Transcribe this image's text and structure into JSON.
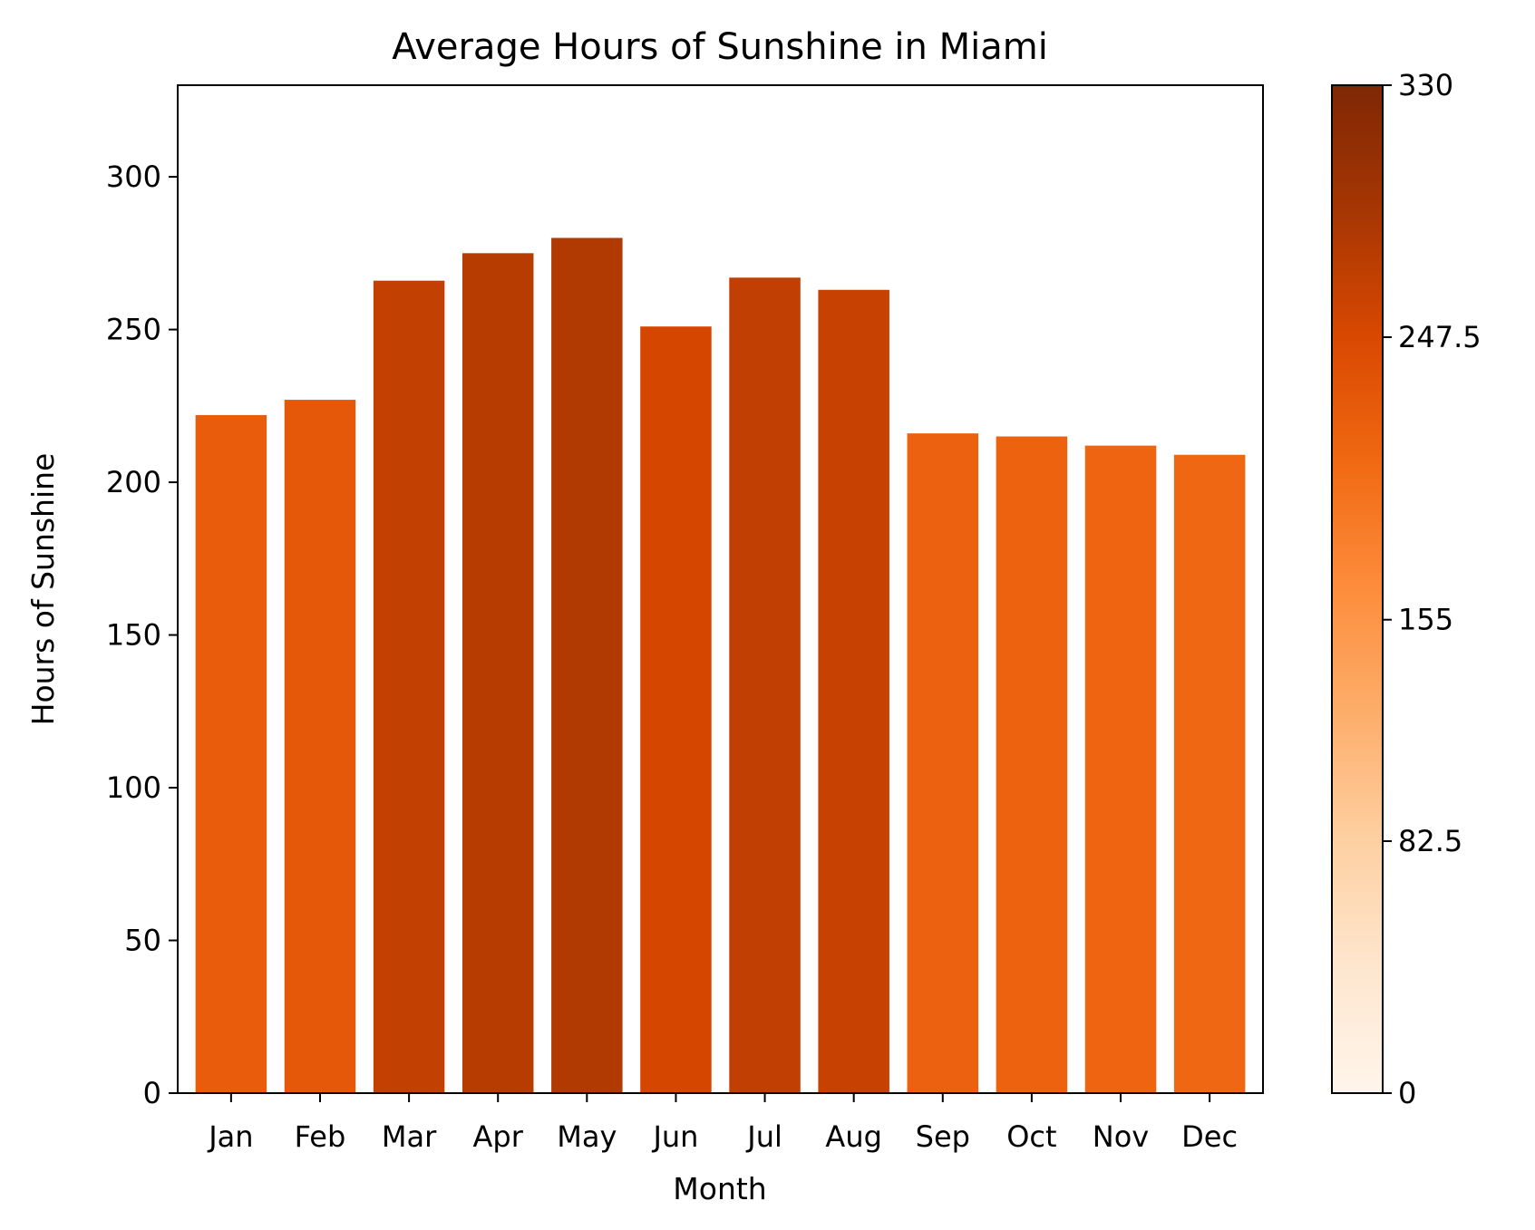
{
  "chart_data": {
    "type": "bar",
    "title": "Average Hours of Sunshine in Miami",
    "xlabel": "Month",
    "ylabel": "Hours of Sunshine",
    "categories": [
      "Jan",
      "Feb",
      "Mar",
      "Apr",
      "May",
      "Jun",
      "Jul",
      "Aug",
      "Sep",
      "Oct",
      "Nov",
      "Dec"
    ],
    "values": [
      222,
      227,
      266,
      275,
      280,
      251,
      267,
      263,
      216,
      215,
      212,
      209
    ],
    "ylim": [
      0,
      330
    ],
    "yticks": [
      0,
      50,
      100,
      150,
      200,
      250,
      300
    ],
    "ytick_labels": [
      "0",
      "50",
      "100",
      "150",
      "200",
      "250",
      "300"
    ],
    "grid": false,
    "colorbar": {
      "colormap": "Oranges",
      "range": [
        0,
        330
      ],
      "ticks": [
        0,
        82.5,
        155,
        247.5,
        330
      ],
      "tick_labels": [
        "0",
        "82.5",
        "155",
        "247.5",
        "330"
      ],
      "placement": "right"
    },
    "colors": {
      "axis": "#000000",
      "background": "#ffffff"
    }
  }
}
